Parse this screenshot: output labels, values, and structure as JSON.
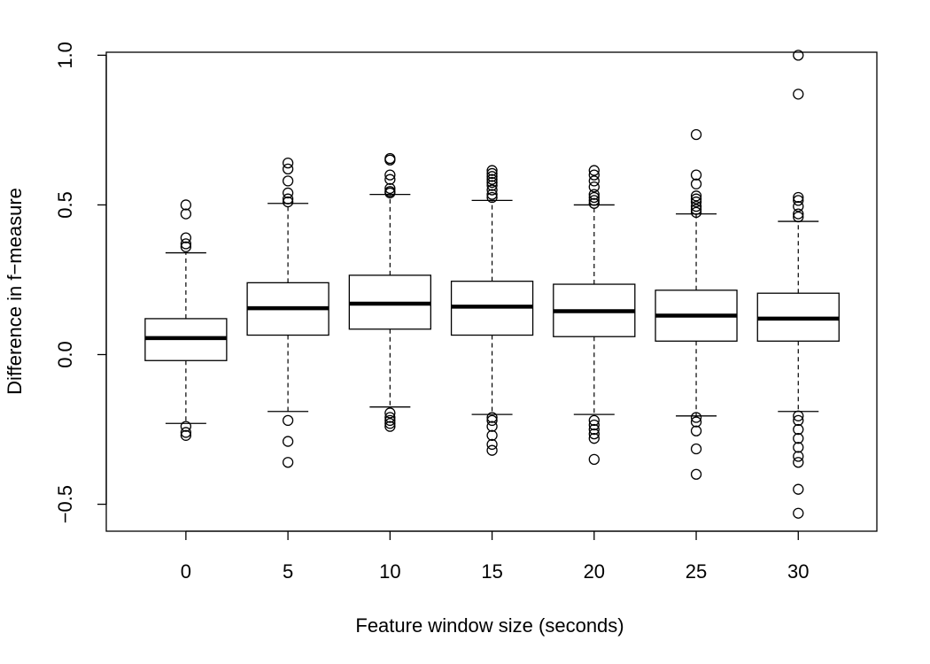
{
  "chart_data": {
    "type": "box",
    "xlabel": "Feature window size (seconds)",
    "ylabel": "Difference in f−measure",
    "categories": [
      "0",
      "5",
      "10",
      "15",
      "20",
      "25",
      "30"
    ],
    "ylim": [
      -0.59,
      1.01
    ],
    "yticks": [
      -0.5,
      0.0,
      0.5,
      1.0
    ],
    "ytick_labels": [
      "−0.5",
      "0.0",
      "0.5",
      "1.0"
    ],
    "grid": false,
    "legend": "none",
    "boxes": [
      {
        "category": "0",
        "whisker_low": -0.23,
        "q1": -0.02,
        "median": 0.055,
        "q3": 0.12,
        "whisker_high": 0.34,
        "outliers": [
          0.5,
          0.47,
          0.39,
          0.37,
          0.36,
          -0.24,
          -0.26,
          -0.27
        ]
      },
      {
        "category": "5",
        "whisker_low": -0.19,
        "q1": 0.065,
        "median": 0.155,
        "q3": 0.24,
        "whisker_high": 0.505,
        "outliers": [
          0.64,
          0.62,
          0.58,
          0.54,
          0.52,
          0.51,
          -0.22,
          -0.29,
          -0.36
        ]
      },
      {
        "category": "10",
        "whisker_low": -0.175,
        "q1": 0.085,
        "median": 0.17,
        "q3": 0.265,
        "whisker_high": 0.535,
        "outliers": [
          0.655,
          0.65,
          0.6,
          0.585,
          0.555,
          0.545,
          0.54,
          -0.195,
          -0.21,
          -0.22,
          -0.23,
          -0.24
        ]
      },
      {
        "category": "15",
        "whisker_low": -0.2,
        "q1": 0.065,
        "median": 0.16,
        "q3": 0.245,
        "whisker_high": 0.515,
        "outliers": [
          0.615,
          0.605,
          0.595,
          0.585,
          0.575,
          0.565,
          0.55,
          0.535,
          0.525,
          -0.21,
          -0.22,
          -0.24,
          -0.27,
          -0.3,
          -0.32
        ]
      },
      {
        "category": "20",
        "whisker_low": -0.2,
        "q1": 0.06,
        "median": 0.145,
        "q3": 0.235,
        "whisker_high": 0.5,
        "outliers": [
          0.615,
          0.6,
          0.58,
          0.56,
          0.535,
          0.525,
          0.515,
          0.505,
          -0.22,
          -0.235,
          -0.25,
          -0.265,
          -0.28,
          -0.35
        ]
      },
      {
        "category": "25",
        "whisker_low": -0.205,
        "q1": 0.045,
        "median": 0.13,
        "q3": 0.215,
        "whisker_high": 0.47,
        "outliers": [
          0.735,
          0.6,
          0.57,
          0.53,
          0.52,
          0.51,
          0.495,
          0.485,
          0.475,
          -0.21,
          -0.225,
          -0.255,
          -0.315,
          -0.4
        ]
      },
      {
        "category": "30",
        "whisker_low": -0.19,
        "q1": 0.045,
        "median": 0.12,
        "q3": 0.205,
        "whisker_high": 0.445,
        "outliers": [
          1.0,
          0.87,
          0.525,
          0.515,
          0.495,
          0.47,
          0.46,
          -0.205,
          -0.22,
          -0.25,
          -0.28,
          -0.31,
          -0.34,
          -0.36,
          -0.45,
          -0.53
        ]
      }
    ]
  }
}
